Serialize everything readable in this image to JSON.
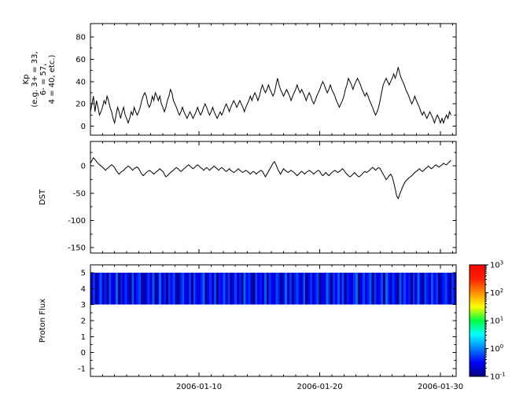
{
  "figure": {
    "background": "#ffffff",
    "line_color": "#000000",
    "axis_color": "#000000"
  },
  "xaxis": {
    "range_days": [
      0,
      30.3
    ],
    "minor_step_days": 1,
    "ticks": [
      {
        "day": 9,
        "label": "2006-01-10"
      },
      {
        "day": 19,
        "label": "2006-01-20"
      },
      {
        "day": 29,
        "label": "2006-01-30"
      }
    ]
  },
  "colorbar": {
    "scale": "log",
    "ticks": [
      "10^3",
      "10^2",
      "10^1",
      "10^0",
      "10^-1"
    ],
    "stops": [
      {
        "t": 0.0,
        "color": "#000080"
      },
      {
        "t": 0.125,
        "color": "#0000ff"
      },
      {
        "t": 0.375,
        "color": "#00ffff"
      },
      {
        "t": 0.5,
        "color": "#00ff40"
      },
      {
        "t": 0.625,
        "color": "#ffff00"
      },
      {
        "t": 0.875,
        "color": "#ff2000"
      },
      {
        "t": 1.0,
        "color": "#ff0000"
      }
    ]
  },
  "chart_data": [
    {
      "type": "line",
      "name": "kp",
      "ylabel_lines": [
        "Kp",
        "(e.g. 3+ = 33,",
        "6- = 57,",
        "4 = 40, etc.)"
      ],
      "ylim": [
        -8,
        92
      ],
      "yticks": [
        0,
        20,
        40,
        60,
        80
      ],
      "yticks_minor": [
        10,
        30,
        50,
        70
      ],
      "x_step_days": 0.125,
      "values": [
        13,
        20,
        27,
        13,
        23,
        17,
        10,
        13,
        17,
        23,
        20,
        27,
        23,
        17,
        13,
        7,
        3,
        10,
        17,
        13,
        7,
        13,
        17,
        10,
        7,
        3,
        7,
        13,
        10,
        17,
        13,
        10,
        13,
        17,
        23,
        27,
        30,
        27,
        20,
        17,
        20,
        27,
        23,
        30,
        27,
        23,
        27,
        20,
        17,
        13,
        17,
        23,
        27,
        33,
        30,
        23,
        20,
        17,
        13,
        10,
        13,
        17,
        13,
        10,
        7,
        10,
        13,
        10,
        7,
        10,
        13,
        17,
        13,
        10,
        13,
        17,
        20,
        17,
        13,
        10,
        13,
        17,
        13,
        10,
        7,
        10,
        13,
        10,
        13,
        17,
        20,
        17,
        13,
        17,
        20,
        23,
        20,
        17,
        20,
        23,
        20,
        17,
        13,
        17,
        20,
        23,
        27,
        23,
        27,
        30,
        27,
        23,
        27,
        33,
        37,
        33,
        30,
        33,
        37,
        33,
        30,
        27,
        30,
        37,
        43,
        37,
        33,
        30,
        27,
        30,
        33,
        30,
        27,
        23,
        27,
        30,
        33,
        37,
        33,
        30,
        33,
        30,
        27,
        23,
        27,
        30,
        27,
        23,
        20,
        23,
        27,
        30,
        33,
        37,
        40,
        37,
        33,
        30,
        33,
        37,
        33,
        30,
        27,
        23,
        20,
        17,
        20,
        23,
        27,
        33,
        37,
        43,
        40,
        37,
        33,
        37,
        40,
        43,
        40,
        37,
        33,
        30,
        27,
        30,
        27,
        23,
        20,
        17,
        13,
        10,
        13,
        17,
        23,
        30,
        37,
        40,
        43,
        40,
        37,
        40,
        43,
        47,
        43,
        47,
        53,
        47,
        43,
        40,
        37,
        33,
        30,
        27,
        23,
        20,
        23,
        27,
        23,
        20,
        17,
        13,
        10,
        13,
        10,
        7,
        10,
        13,
        10,
        7,
        3,
        7,
        10,
        7,
        3,
        7,
        3,
        7,
        10,
        7,
        13,
        10
      ]
    },
    {
      "type": "line",
      "name": "dst",
      "ylabel": "DST",
      "ylim": [
        -160,
        45
      ],
      "yticks": [
        0,
        -50,
        -100,
        -150
      ],
      "yticks_minor": [
        25,
        -25,
        -75,
        -125
      ],
      "x_step_days": 0.125,
      "values": [
        5,
        10,
        15,
        12,
        8,
        5,
        2,
        0,
        -2,
        -5,
        -8,
        -5,
        -3,
        0,
        2,
        0,
        -3,
        -8,
        -12,
        -15,
        -12,
        -10,
        -8,
        -5,
        -3,
        0,
        -2,
        -5,
        -8,
        -5,
        -3,
        -2,
        -5,
        -10,
        -15,
        -18,
        -15,
        -12,
        -10,
        -8,
        -10,
        -12,
        -15,
        -12,
        -10,
        -8,
        -5,
        -8,
        -10,
        -15,
        -20,
        -18,
        -15,
        -12,
        -10,
        -8,
        -5,
        -3,
        -5,
        -8,
        -10,
        -8,
        -5,
        -3,
        0,
        2,
        0,
        -3,
        -5,
        -3,
        0,
        2,
        0,
        -3,
        -5,
        -8,
        -5,
        -3,
        -5,
        -8,
        -5,
        -3,
        0,
        -3,
        -5,
        -8,
        -5,
        -3,
        -5,
        -8,
        -10,
        -8,
        -5,
        -8,
        -10,
        -12,
        -10,
        -8,
        -5,
        -8,
        -10,
        -12,
        -10,
        -8,
        -10,
        -12,
        -15,
        -12,
        -10,
        -12,
        -15,
        -12,
        -10,
        -8,
        -10,
        -15,
        -20,
        -15,
        -10,
        -5,
        0,
        5,
        8,
        2,
        -5,
        -10,
        -15,
        -10,
        -5,
        -8,
        -10,
        -12,
        -10,
        -8,
        -10,
        -12,
        -15,
        -18,
        -15,
        -12,
        -10,
        -12,
        -15,
        -12,
        -10,
        -8,
        -10,
        -12,
        -15,
        -12,
        -10,
        -8,
        -10,
        -15,
        -18,
        -15,
        -12,
        -15,
        -18,
        -15,
        -12,
        -10,
        -8,
        -10,
        -12,
        -10,
        -8,
        -5,
        -8,
        -12,
        -15,
        -18,
        -20,
        -18,
        -15,
        -12,
        -15,
        -18,
        -20,
        -18,
        -15,
        -12,
        -10,
        -12,
        -10,
        -8,
        -5,
        -3,
        -5,
        -8,
        -5,
        -3,
        -5,
        -10,
        -15,
        -20,
        -25,
        -22,
        -18,
        -15,
        -20,
        -30,
        -42,
        -55,
        -60,
        -52,
        -45,
        -38,
        -32,
        -28,
        -25,
        -22,
        -20,
        -18,
        -15,
        -12,
        -10,
        -8,
        -5,
        -8,
        -10,
        -8,
        -5,
        -3,
        0,
        -3,
        -5,
        -3,
        0,
        2,
        0,
        -2,
        0,
        2,
        5,
        3,
        2,
        5,
        8,
        10
      ]
    },
    {
      "type": "heatmap",
      "name": "proton-flux",
      "ylabel": "Proton Flux",
      "ylim": [
        -1.5,
        5.5
      ],
      "yticks": [
        -1,
        0,
        1,
        2,
        3,
        4,
        5
      ],
      "yticks_minor": [
        -0.5,
        0.5,
        1.5,
        2.5,
        3.5,
        4.5
      ],
      "band_y": [
        3,
        5
      ],
      "scale": "log",
      "clim": [
        0.1,
        1000
      ],
      "values": [
        0.2,
        0.5,
        0.1,
        0.3,
        0.7,
        0.2,
        0.4,
        0.1,
        0.6,
        0.3,
        0.2,
        0.8,
        0.1,
        0.4,
        0.2,
        0.5,
        0.3,
        0.1,
        0.7,
        0.2,
        0.4,
        0.6,
        0.2,
        0.1,
        0.3,
        0.5,
        0.2,
        0.7,
        0.1,
        0.3,
        0.8,
        0.2,
        0.4,
        0.1,
        0.5,
        0.3,
        0.6,
        0.2,
        0.1,
        0.4,
        0.7,
        0.3,
        0.2,
        0.5,
        0.1,
        0.6,
        0.3,
        0.2,
        0.4,
        0.8,
        0.1,
        0.3,
        0.5,
        0.2,
        0.6,
        0.1,
        0.4,
        0.3,
        0.7,
        0.2,
        0.5,
        0.1,
        0.3,
        0.6,
        0.2,
        0.4,
        0.1,
        0.8,
        0.3,
        0.5,
        0.2,
        0.1,
        0.6,
        0.3,
        0.4,
        0.2,
        0.7,
        0.1,
        0.5,
        0.3,
        0.2,
        0.6,
        0.4,
        0.1,
        0.3,
        0.8,
        0.2,
        0.5,
        0.1,
        0.4,
        0.6,
        0.3,
        0.2,
        0.7,
        0.1,
        0.3,
        0.5,
        0.2,
        0.4,
        0.6,
        0.1,
        0.3,
        0.2,
        0.8,
        0.4,
        0.1,
        0.5,
        0.3,
        0.7,
        0.2,
        0.6,
        0.1,
        0.4,
        0.3,
        0.2,
        0.5,
        0.8,
        0.1,
        0.3,
        0.6,
        0.2,
        0.4,
        0.7,
        0.1,
        0.5,
        0.2,
        0.3,
        0.6,
        0.1,
        0.8,
        0.4,
        0.2,
        0.5,
        0.3,
        0.1,
        0.7,
        0.2,
        0.6,
        0.3,
        0.4,
        0.1,
        0.5,
        0.2,
        0.8,
        0.3,
        0.1,
        0.6,
        0.4,
        0.2,
        0.7,
        0.3,
        0.5,
        0.1,
        0.2,
        0.4,
        0.6,
        0.3,
        0.1,
        0.5,
        0.2
      ]
    }
  ]
}
